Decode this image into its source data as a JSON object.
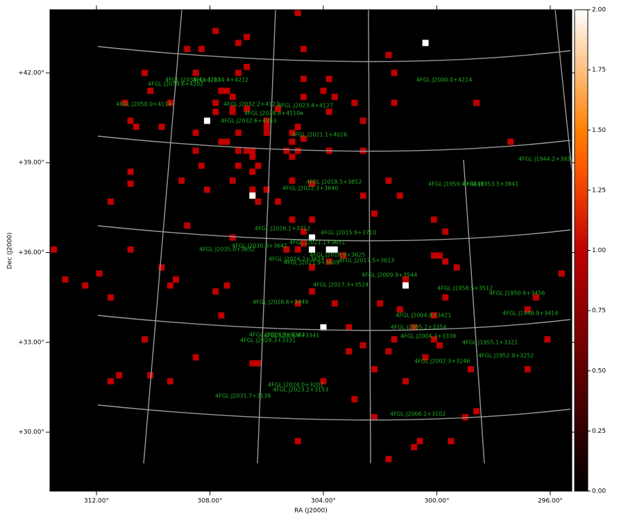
{
  "chart_data": {
    "type": "skymap",
    "x_label": "RA (J2000)",
    "y_label": "Dec (J2000)",
    "xlim": [
      313.64,
      295.24
    ],
    "ylim": [
      28.03,
      44.11
    ],
    "xticks": [
      {
        "value": 312,
        "label": "312.00°"
      },
      {
        "value": 308,
        "label": "308.00°"
      },
      {
        "value": 304,
        "label": "304.00°"
      },
      {
        "value": 300,
        "label": "300.00°"
      },
      {
        "value": 296,
        "label": "296.00°"
      }
    ],
    "yticks": [
      {
        "value": 42,
        "label": "+42.00°"
      },
      {
        "value": 39,
        "label": "+39.00°"
      },
      {
        "value": 36,
        "label": "+36.00°"
      },
      {
        "value": 33,
        "label": "+33.00°"
      },
      {
        "value": 30,
        "label": "+30.00°"
      }
    ],
    "colormap": "gist_heat",
    "clim": [
      0,
      2
    ],
    "cticks": [
      {
        "value": 0,
        "label": "0.00"
      },
      {
        "value": 0.25,
        "label": "0.25"
      },
      {
        "value": 0.5,
        "label": "0.50"
      },
      {
        "value": 0.75,
        "label": "0.75"
      },
      {
        "value": 1,
        "label": "1.00"
      },
      {
        "value": 1.25,
        "label": "1.25"
      },
      {
        "value": 1.5,
        "label": "1.50"
      },
      {
        "value": 1.75,
        "label": "1.75"
      },
      {
        "value": 2,
        "label": "2.00"
      }
    ],
    "source_color": "#22b022",
    "pixels": {
      "ra": [
        304.9,
        307.8,
        306.7,
        307.0,
        308.8,
        308.3,
        304.7,
        301.7,
        300.4,
        306.7,
        310.3,
        308.5,
        307.0,
        301.5,
        304.7,
        303.8,
        310.1,
        307.6,
        307.4,
        304.0,
        307.2,
        304.7,
        303.6,
        311.0,
        309.4,
        307.8,
        302.9,
        301.5,
        298.6,
        307.2,
        306.7,
        305.6,
        307.8,
        307.2,
        303.8,
        310.8,
        308.1,
        306.0,
        302.6,
        310.6,
        309.7,
        306.0,
        304.9,
        308.5,
        307.0,
        306.0,
        305.1,
        304.7,
        305.1,
        307.6,
        307.4,
        297.4,
        308.5,
        307.0,
        306.7,
        306.5,
        305.3,
        304.9,
        303.8,
        302.6,
        306.5,
        305.1,
        308.3,
        307.0,
        306.3,
        310.8,
        306.5,
        309.0,
        307.2,
        305.1,
        301.7,
        310.8,
        304.4,
        308.1,
        306.5,
        306.0,
        306.5,
        302.6,
        301.3,
        311.5,
        306.3,
        305.6,
        302.2,
        305.1,
        304.4,
        300.1,
        308.8,
        304.7,
        299.7,
        304.4,
        307.2,
        304.7,
        313.5,
        310.8,
        305.3,
        304.9,
        304.4,
        303.8,
        303.6,
        303.3,
        300.1,
        299.9,
        303.8,
        299.7,
        309.7,
        304.4,
        299.3,
        311.9,
        313.1,
        309.2,
        301.1,
        295.6,
        312.4,
        309.4,
        307.4,
        301.1,
        307.8,
        304.4,
        311.5,
        299.7,
        296.5,
        304.9,
        303.6,
        302.0,
        301.3,
        296.8,
        307.6,
        300.1,
        304.0,
        303.1,
        300.8,
        310.3,
        301.5,
        300.1,
        296.1,
        302.6,
        299.9,
        303.1,
        301.7,
        308.5,
        300.4,
        306.5,
        306.3,
        302.2,
        298.8,
        296.8,
        311.2,
        310.1,
        311.5,
        309.4,
        304.0,
        301.1,
        302.9,
        298.6,
        302.2,
        299.0,
        300.6,
        304.9,
        299.5,
        300.8,
        301.7
      ],
      "dec": [
        44.0,
        43.4,
        43.2,
        43.0,
        42.8,
        42.8,
        42.8,
        42.6,
        43.0,
        42.2,
        42.0,
        42.0,
        42.0,
        42.0,
        41.8,
        41.8,
        41.4,
        41.4,
        41.4,
        41.4,
        41.2,
        41.2,
        41.2,
        41.0,
        41.0,
        41.0,
        41.0,
        41.0,
        41.0,
        40.8,
        40.8,
        40.8,
        40.7,
        40.7,
        40.7,
        40.4,
        40.4,
        40.4,
        40.4,
        40.2,
        40.2,
        40.2,
        40.2,
        40.0,
        40.0,
        40.0,
        40.0,
        39.8,
        39.7,
        39.7,
        39.7,
        39.7,
        39.4,
        39.4,
        39.4,
        39.4,
        39.4,
        39.4,
        39.4,
        39.4,
        39.2,
        39.2,
        38.9,
        38.9,
        38.9,
        38.7,
        38.7,
        38.4,
        38.4,
        38.4,
        38.4,
        38.3,
        38.3,
        38.1,
        38.1,
        38.1,
        37.9,
        37.9,
        37.9,
        37.7,
        37.7,
        37.7,
        37.3,
        37.1,
        37.1,
        37.1,
        36.9,
        36.7,
        36.7,
        36.5,
        36.5,
        36.3,
        36.1,
        36.1,
        36.1,
        36.1,
        36.1,
        36.1,
        36.1,
        35.9,
        35.9,
        35.9,
        35.7,
        35.7,
        35.5,
        35.5,
        35.5,
        35.3,
        35.1,
        35.1,
        35.1,
        35.3,
        34.9,
        34.9,
        34.9,
        34.9,
        34.7,
        34.7,
        34.5,
        34.5,
        34.5,
        34.3,
        34.3,
        34.3,
        34.1,
        34.1,
        33.9,
        33.9,
        33.5,
        33.5,
        33.5,
        33.1,
        33.1,
        33.1,
        33.1,
        32.9,
        32.9,
        32.7,
        32.7,
        32.5,
        32.5,
        32.3,
        32.3,
        32.1,
        32.1,
        32.1,
        31.9,
        31.9,
        31.7,
        31.7,
        31.7,
        31.7,
        31.1,
        30.7,
        30.5,
        30.5,
        29.7,
        29.7,
        29.7,
        29.5,
        29.1
      ],
      "values": [
        1,
        1,
        1,
        1,
        1,
        1,
        1,
        1,
        2,
        1,
        1,
        1,
        1,
        1,
        1,
        1,
        1,
        1,
        1,
        1,
        1,
        1,
        1,
        1,
        1,
        1,
        1,
        1,
        1,
        1,
        1,
        1,
        1,
        1,
        1,
        1,
        2,
        1,
        1,
        1,
        1,
        1,
        1,
        1,
        1,
        1,
        1,
        1,
        1,
        1,
        1,
        1,
        1,
        1,
        1,
        1,
        1,
        1,
        1,
        1,
        1,
        1,
        1,
        1,
        1,
        1,
        1,
        1,
        1,
        1,
        1,
        1,
        1,
        1,
        1,
        1,
        2,
        1,
        1,
        1,
        1,
        1,
        1,
        1,
        1,
        1,
        1,
        1,
        1,
        2,
        1,
        1,
        1,
        1,
        1,
        1,
        2,
        2,
        2,
        1,
        1,
        1,
        1,
        1,
        1,
        1,
        1,
        1,
        1,
        1,
        1,
        1,
        1,
        1,
        1,
        2,
        1,
        1,
        1,
        1,
        1,
        1,
        1,
        1,
        1,
        1,
        1,
        1,
        2,
        1,
        1,
        1,
        1,
        1,
        1,
        1,
        1,
        1,
        1,
        1,
        1,
        1,
        1,
        1,
        1,
        1,
        1,
        1,
        1,
        1,
        1,
        1,
        1,
        1,
        1,
        1,
        1,
        1,
        1,
        1,
        1
      ]
    },
    "sources": [
      "4FGL J2038.4+4212",
      "4FGL J2034.4+4212",
      "4FGL J2039.6+4202",
      "4FGL J2000.0+4214",
      "4FGL J2050.0+4114",
      "4FGL J2032.2+4127",
      "4FGL J2023.4+4127",
      "4FGL J2028.6+4110e",
      "4FGL J2032.6+4053",
      "4FGL J2021.1+4026",
      "4FGL J1944.2+3934",
      "4FGL J2018.5+3852",
      "4FGL J2022.3+3840",
      "4FGL J1959.4+3848",
      "4FGL J1953.5+3841",
      "4FGL J2026.1+3712",
      "4FGL J2015.9+3710",
      "4FGL J2021.1+3651",
      "4FGL J2030.0+3641",
      "4FGL J2035.0+3632",
      "4FGL J2018.9+3625",
      "4FGL J2024.2+3624",
      "4FGL J2021.9+3609",
      "4FGL J2017.5+3613",
      "4FGL J2009.9+3544",
      "4FGL J2017.3+3524",
      "4FGL J1958.5+3512",
      "4FGL J1950.6+3456",
      "4FGL J2026.6+3449",
      "4FGL J2004.8+3421",
      "4FGL J1948.9+3414",
      "4FGL J2005.2+3354",
      "4FGL J2028.3+3343",
      "4FGL J2026.6+3341",
      "4FGL J2028.3+3331",
      "4FGL J2004.3+3339",
      "4FGL J1955.1+3321",
      "4FGL J1952.9+3252",
      "4FGL J2002.3+3246",
      "4FGL J2024.0+3202",
      "4FGL J2023.2+3153",
      "4FGL J2031.7+3138",
      "4FGL J2006.2+3102"
    ]
  }
}
